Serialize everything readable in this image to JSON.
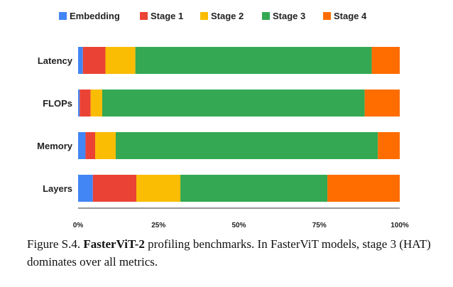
{
  "chart_data": {
    "type": "bar",
    "orientation": "horizontal",
    "stacked": true,
    "normalized": true,
    "categories": [
      "Latency",
      "FLOPs",
      "Memory",
      "Layers"
    ],
    "series": [
      {
        "name": "Embedding",
        "color": "#4285F4",
        "values": [
          1.5,
          0.5,
          2.3,
          4.6
        ]
      },
      {
        "name": "Stage 1",
        "color": "#EA4335",
        "values": [
          7.0,
          3.4,
          3.0,
          13.5
        ]
      },
      {
        "name": "Stage 2",
        "color": "#FBBC04",
        "values": [
          9.3,
          3.6,
          6.4,
          13.7
        ]
      },
      {
        "name": "Stage 3",
        "color": "#34A853",
        "values": [
          73.5,
          81.6,
          81.5,
          45.7
        ]
      },
      {
        "name": "Stage 4",
        "color": "#FF6D01",
        "values": [
          8.7,
          10.9,
          6.8,
          22.5
        ]
      }
    ],
    "xticks": [
      "0%",
      "25%",
      "50%",
      "75%",
      "100%"
    ],
    "xlim": [
      0,
      100
    ],
    "title": "",
    "xlabel": "",
    "ylabel": "",
    "legend": "top"
  },
  "caption": {
    "label": "Figure S.4.",
    "model": "FasterViT-2",
    "text": "profiling benchmarks. In FasterViT models, stage 3 (HAT) dominates over all metrics."
  }
}
